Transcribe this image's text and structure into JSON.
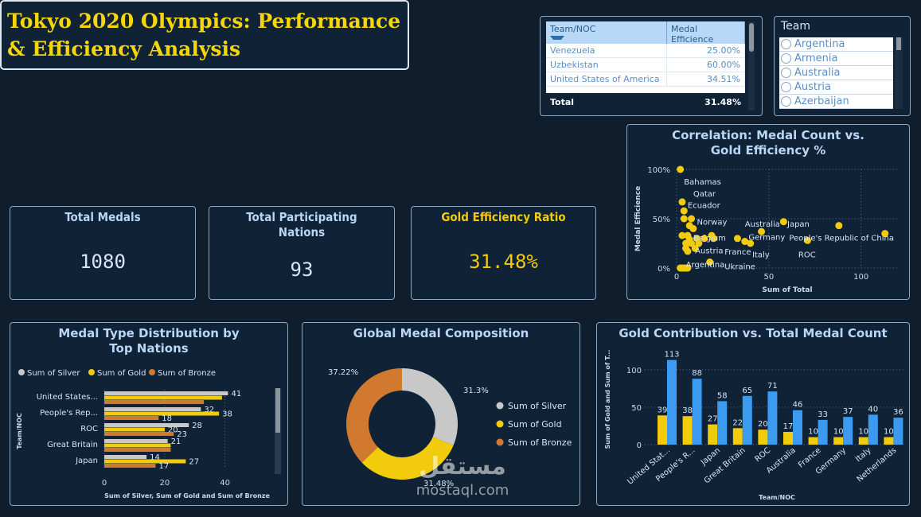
{
  "header": {
    "title": "Tokyo 2020 Olympics: Performance & Efficiency Analysis"
  },
  "table": {
    "col1": "Team/NOC",
    "col2": "Medal Efficience",
    "rows": [
      {
        "team": "Venezuela",
        "value": "25.00%"
      },
      {
        "team": "Uzbekistan",
        "value": "60.00%"
      },
      {
        "team": "United States of America",
        "value": "34.51%"
      }
    ],
    "total_label": "Total",
    "total_value": "31.48%"
  },
  "team_slicer": {
    "title": "Team",
    "items": [
      "Argentina",
      "Armenia",
      "Australia",
      "Austria",
      "Azerbaijan"
    ]
  },
  "kpis": {
    "total_medals": {
      "label": "Total Medals",
      "value": "1080"
    },
    "nations": {
      "label": "Total Participating Nations",
      "value": "93"
    },
    "gold_eff": {
      "label": "Gold Efficiency Ratio",
      "value": "31.48%"
    }
  },
  "colors": {
    "gold": "#f2cc0c",
    "silver": "#c8c8c8",
    "bronze": "#d17a2f",
    "blue": "#3b9bf0",
    "title": "#f5d60a",
    "bg": "#0f1d2c"
  },
  "scatter": {
    "title": "Correlation: Medal Count vs. Gold Efficiency %",
    "xlabel": "Sum of Total",
    "ylabel": "Medal Efficience",
    "yticks": [
      "100%",
      "50%",
      "0%"
    ],
    "xticks": [
      "0",
      "50",
      "100"
    ],
    "labels": [
      "Bahamas",
      "Qatar",
      "Ecuador",
      "Norway",
      "Belgium",
      "Austria",
      "Argentina",
      "France",
      "Germany",
      "Italy",
      "Ukraine",
      "Australia",
      "Japan",
      "People's Republic of China",
      "ROC"
    ]
  },
  "medal_type": {
    "title": "Medal Type Distribution by Top Nations",
    "legend": [
      "Sum of Silver",
      "Sum of Gold",
      "Sum of Bronze"
    ],
    "ylabel": "Team/NOC",
    "xlabel": "Sum of Silver, Sum of Gold and Sum of Bronze",
    "xticks": [
      "0",
      "20",
      "40"
    ]
  },
  "donut": {
    "title": "Global Medal Composition",
    "legend": [
      "Sum of Silver",
      "Sum of Gold",
      "Sum of Bronze"
    ],
    "labels": [
      "31.3%",
      "31.48%",
      "37.22%"
    ]
  },
  "gold_vs_total": {
    "title": "Gold Contribution vs. Total Medal Count",
    "ylabel": "Sum of Gold and Sum of T...",
    "xlabel": "Team/NOC",
    "yticks": [
      "100",
      "50",
      "0"
    ]
  },
  "watermark": {
    "text": "mostaql.com"
  },
  "chart_data": [
    {
      "type": "scatter",
      "title": "Correlation: Medal Count vs. Gold Efficiency %",
      "xlabel": "Sum of Total",
      "ylabel": "Medal Efficience",
      "xlim": [
        0,
        120
      ],
      "ylim": [
        0,
        1
      ],
      "points": [
        {
          "x": 2,
          "y": 1.0
        },
        {
          "x": 3,
          "y": 0.67
        },
        {
          "x": 4,
          "y": 0.58
        },
        {
          "x": 8,
          "y": 0.5
        },
        {
          "x": 7,
          "y": 0.43
        },
        {
          "x": 9,
          "y": 0.4
        },
        {
          "x": 6,
          "y": 0.33
        },
        {
          "x": 11,
          "y": 0.3
        },
        {
          "x": 7,
          "y": 0.29
        },
        {
          "x": 5,
          "y": 0.2
        },
        {
          "x": 3,
          "y": 0.33
        },
        {
          "x": 4,
          "y": 0.5
        },
        {
          "x": 5,
          "y": 0.25
        },
        {
          "x": 6,
          "y": 0.17
        },
        {
          "x": 8,
          "y": 0.25
        },
        {
          "x": 10,
          "y": 0.2
        },
        {
          "x": 12,
          "y": 0.25
        },
        {
          "x": 15,
          "y": 0.3
        },
        {
          "x": 19,
          "y": 0.33
        },
        {
          "x": 20,
          "y": 0.3
        },
        {
          "x": 33,
          "y": 0.3
        },
        {
          "x": 37,
          "y": 0.27
        },
        {
          "x": 40,
          "y": 0.25
        },
        {
          "x": 46,
          "y": 0.37
        },
        {
          "x": 58,
          "y": 0.47
        },
        {
          "x": 71,
          "y": 0.28
        },
        {
          "x": 88,
          "y": 0.43
        },
        {
          "x": 113,
          "y": 0.35
        },
        {
          "x": 18,
          "y": 0.06
        },
        {
          "x": 2,
          "y": 0.0
        },
        {
          "x": 3,
          "y": 0.0
        },
        {
          "x": 4,
          "y": 0.0
        },
        {
          "x": 5,
          "y": 0.0
        },
        {
          "x": 6,
          "y": 0.0
        }
      ],
      "annotations": [
        {
          "text": "Bahamas",
          "x": 4,
          "y": 0.88
        },
        {
          "text": "Qatar",
          "x": 9,
          "y": 0.76
        },
        {
          "text": "Ecuador",
          "x": 6,
          "y": 0.64
        },
        {
          "text": "Norway",
          "x": 11,
          "y": 0.47
        },
        {
          "text": "Belgium",
          "x": 9,
          "y": 0.31
        },
        {
          "text": "Austria",
          "x": 10,
          "y": 0.18
        },
        {
          "text": "Argentina",
          "x": 5,
          "y": 0.04
        },
        {
          "text": "France",
          "x": 26,
          "y": 0.17
        },
        {
          "text": "Germany",
          "x": 39,
          "y": 0.32
        },
        {
          "text": "Italy",
          "x": 41,
          "y": 0.14
        },
        {
          "text": "Ukraine",
          "x": 26,
          "y": 0.02
        },
        {
          "text": "Australia",
          "x": 37,
          "y": 0.45
        },
        {
          "text": "Japan",
          "x": 60,
          "y": 0.45
        },
        {
          "text": "People's Republic of China",
          "x": 61,
          "y": 0.31
        },
        {
          "text": "ROC",
          "x": 66,
          "y": 0.14
        }
      ]
    },
    {
      "type": "bar",
      "orientation": "horizontal",
      "title": "Medal Type Distribution by Top Nations",
      "categories": [
        "United States...",
        "People's Rep...",
        "ROC",
        "Great Britain",
        "Japan"
      ],
      "series": [
        {
          "name": "Sum of Silver",
          "values": [
            41,
            32,
            28,
            21,
            14
          ]
        },
        {
          "name": "Sum of Gold",
          "values": [
            39,
            38,
            20,
            22,
            27
          ]
        },
        {
          "name": "Sum of Bronze",
          "values": [
            33,
            18,
            23,
            22,
            17
          ]
        }
      ],
      "xlim": [
        0,
        48
      ],
      "xlabel": "Sum of Silver, Sum of Gold and Sum of Bronze",
      "ylabel": "Team/NOC",
      "shown_labels": [
        [
          41,
          0,
          0
        ],
        [
          32,
          38,
          18
        ],
        [
          28,
          20,
          23
        ],
        [
          21,
          0,
          0
        ],
        [
          14,
          27,
          17
        ]
      ]
    },
    {
      "type": "pie",
      "title": "Global Medal Composition",
      "categories": [
        "Sum of Silver",
        "Sum of Gold",
        "Sum of Bronze"
      ],
      "values": [
        31.3,
        31.48,
        37.22
      ]
    },
    {
      "type": "bar",
      "title": "Gold Contribution vs. Total Medal Count",
      "categories": [
        "United Stat...",
        "People's R...",
        "Japan",
        "Great Britain",
        "ROC",
        "Australia",
        "France",
        "Germany",
        "Italy",
        "Netherlands"
      ],
      "series": [
        {
          "name": "Sum of Gold",
          "values": [
            39,
            38,
            27,
            22,
            20,
            17,
            10,
            10,
            10,
            10
          ]
        },
        {
          "name": "Sum of Total",
          "values": [
            113,
            88,
            58,
            65,
            71,
            46,
            33,
            37,
            40,
            36
          ]
        }
      ],
      "ylim": [
        0,
        120
      ],
      "xlabel": "Team/NOC",
      "ylabel": "Sum of Gold and Sum of T..."
    }
  ]
}
